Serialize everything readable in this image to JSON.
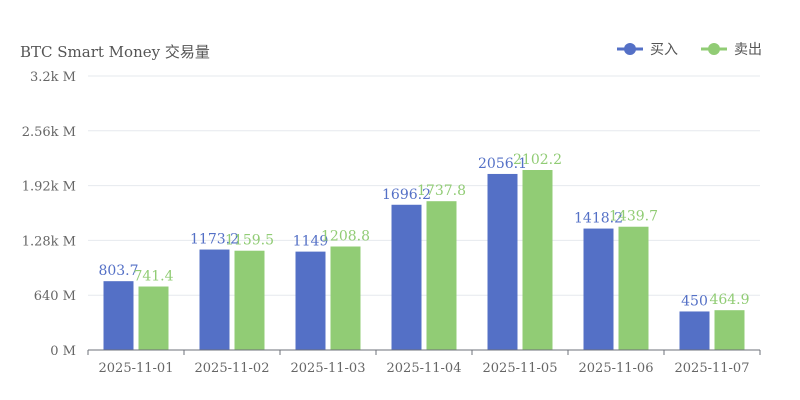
{
  "colors": {
    "buy": "#5470c6",
    "sell": "#91cc75",
    "grid": "#e6e9ee",
    "axis": "#6e7079"
  },
  "chart_data": {
    "type": "bar",
    "title": "BTC Smart Money 交易量",
    "categories": [
      "2025-11-01",
      "2025-11-02",
      "2025-11-03",
      "2025-11-04",
      "2025-11-05",
      "2025-11-06",
      "2025-11-07"
    ],
    "series": [
      {
        "name": "买入",
        "values": [
          803.7,
          1173.2,
          1149,
          1696.2,
          2056.1,
          1418.2,
          450
        ]
      },
      {
        "name": "卖出",
        "values": [
          741.4,
          1159.5,
          1208.8,
          1737.8,
          2102.2,
          1439.7,
          464.9
        ]
      }
    ],
    "y_ticks": [
      "0 M",
      "640 M",
      "1.28k M",
      "1.92k M",
      "2.56k M",
      "3.2k M"
    ],
    "ylim": [
      0,
      3200
    ],
    "legend": "top-right",
    "grid": true
  }
}
